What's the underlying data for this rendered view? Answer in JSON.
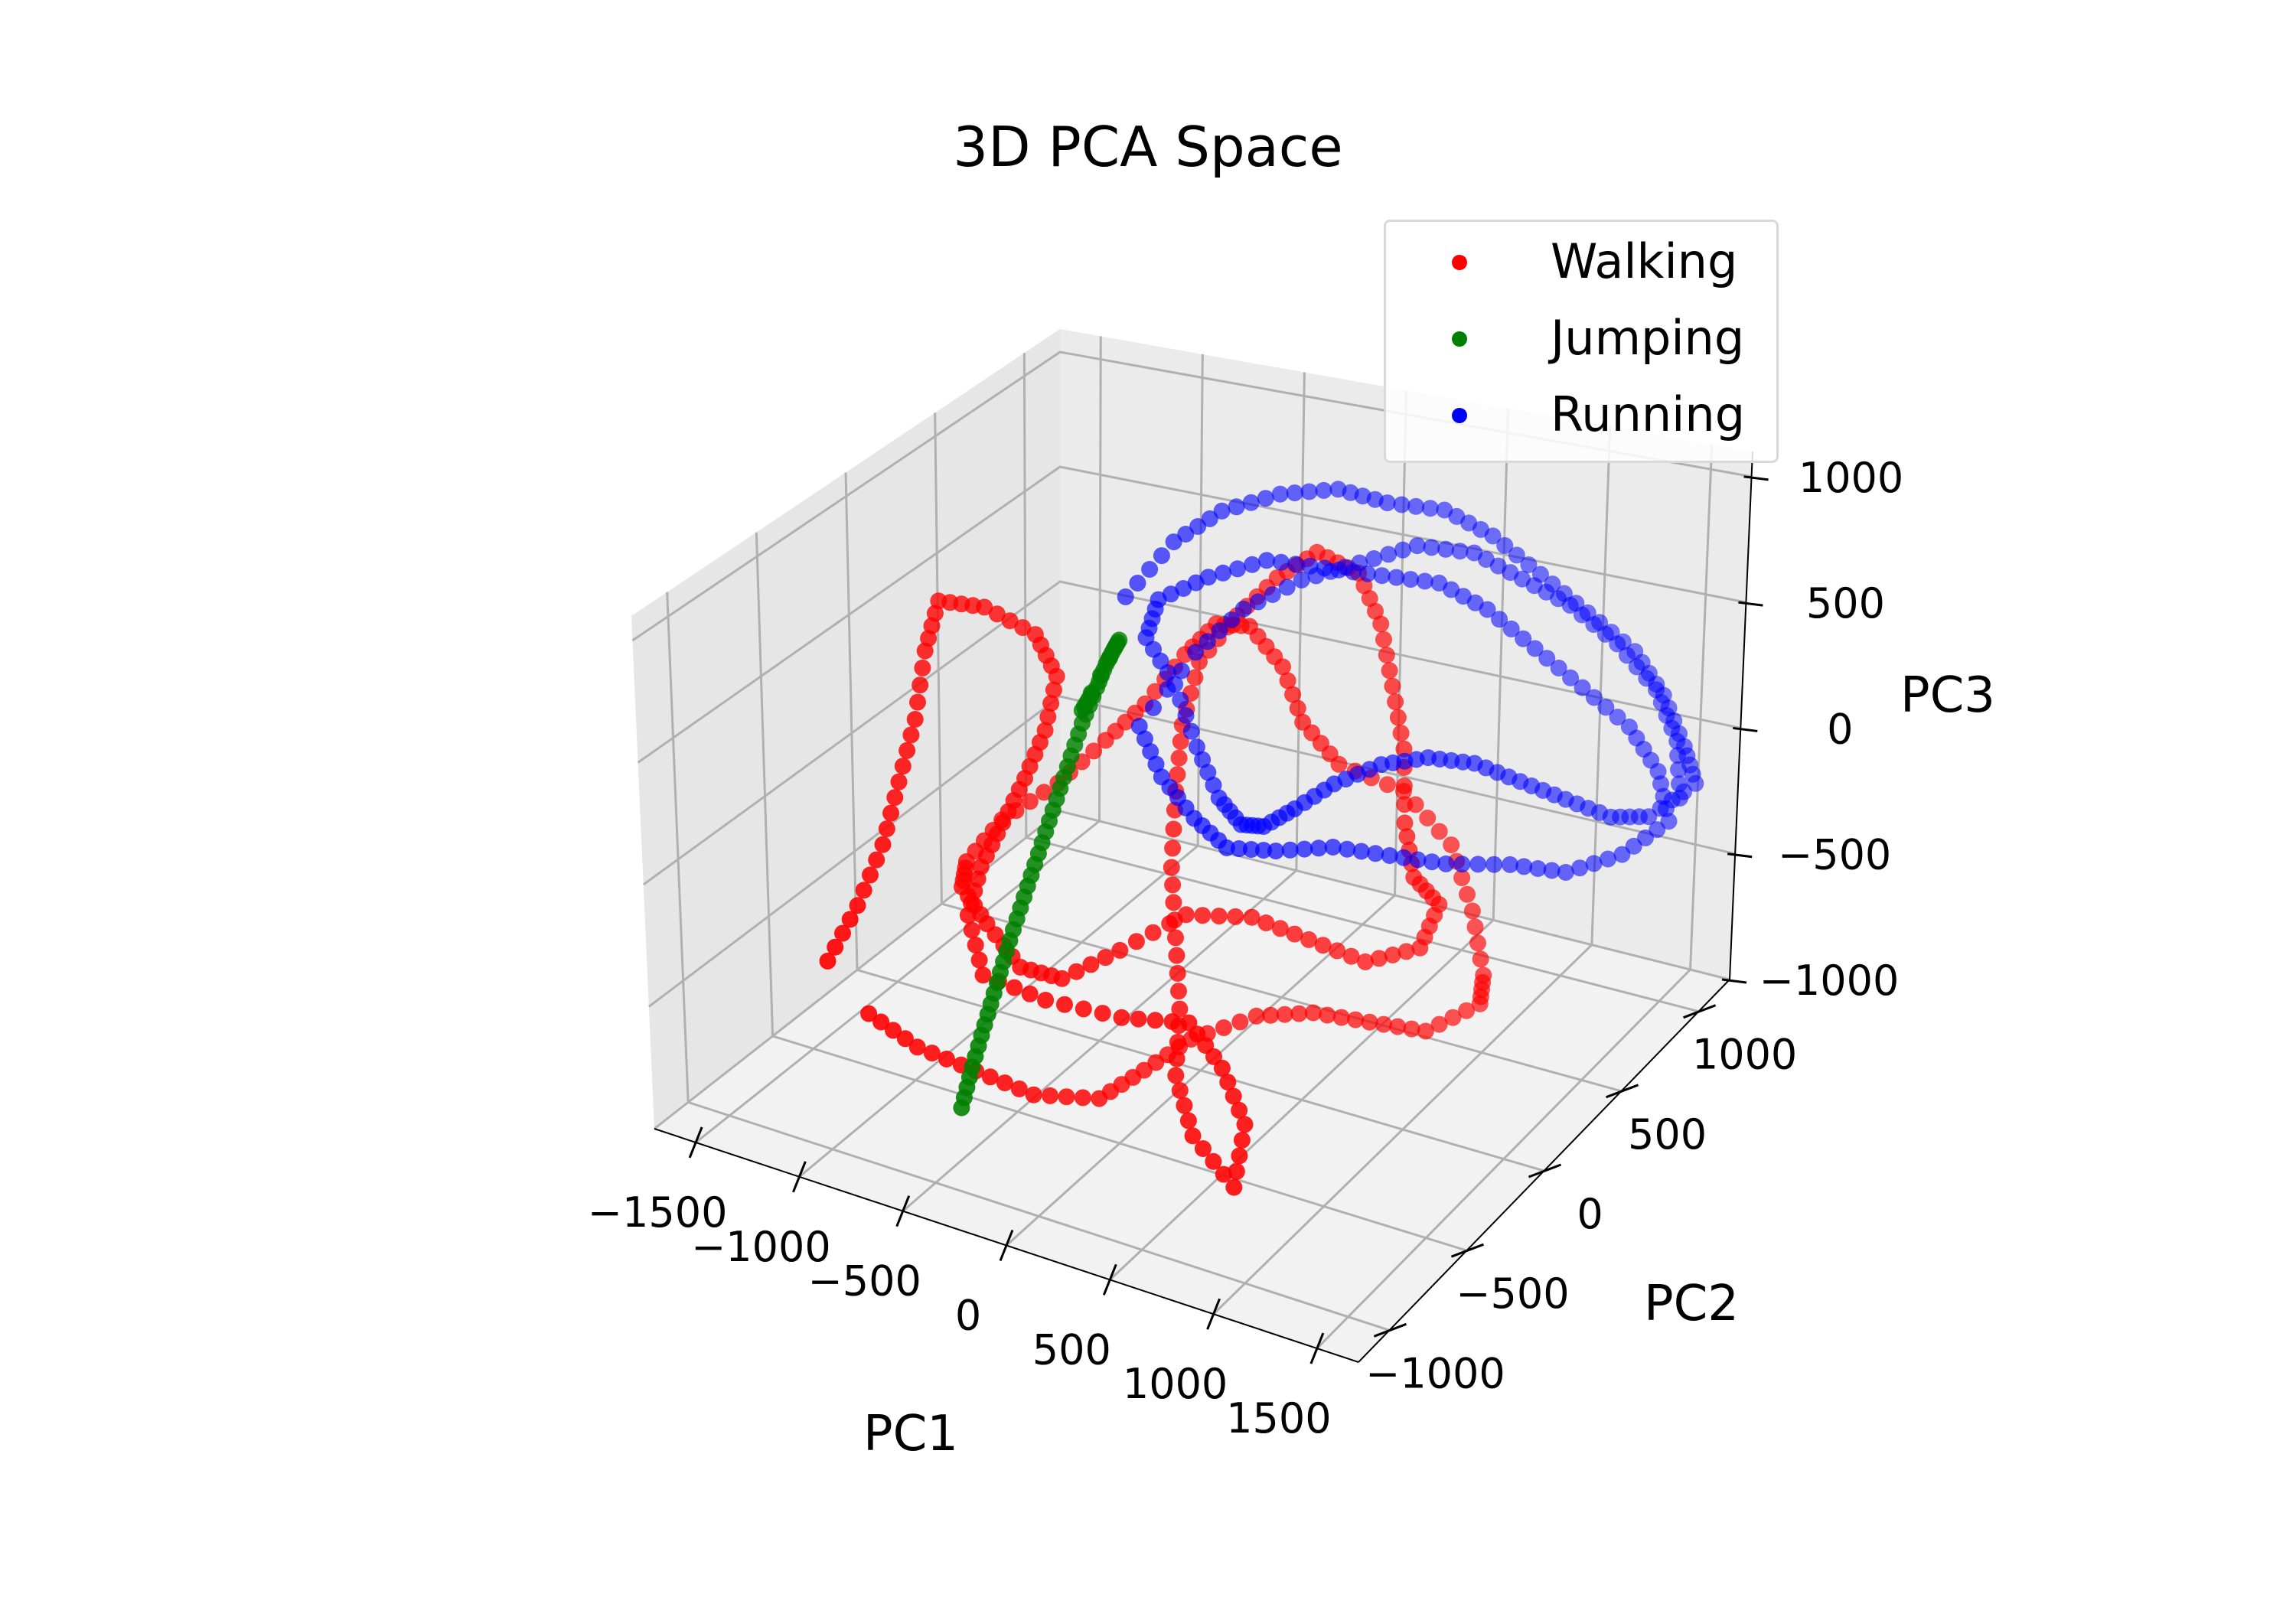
{
  "chart_data": {
    "type": "scatter",
    "projection": "3d",
    "title": "3D PCA Space",
    "xlabel": "PC1",
    "ylabel": "PC2",
    "zlabel": "PC3",
    "xlim": [
      -1700,
      1700
    ],
    "ylim": [
      -1200,
      1200
    ],
    "zlim": [
      -1000,
      1100
    ],
    "xticks": [
      -1500,
      -1000,
      -500,
      0,
      500,
      1000,
      1500
    ],
    "xtick_labels": [
      "−1500",
      "−1000",
      "−500",
      "0",
      "500",
      "1000",
      "1500"
    ],
    "yticks": [
      -1000,
      -500,
      0,
      500,
      1000
    ],
    "ytick_labels": [
      "−1000",
      "−500",
      "0",
      "500",
      "1000"
    ],
    "zticks": [
      -1000,
      -500,
      0,
      500,
      1000
    ],
    "ztick_labels": [
      "−1000",
      "−500",
      "0",
      "500",
      "1000"
    ],
    "grid": true,
    "legend_position": "top-right",
    "series": [
      {
        "name": "Walking",
        "color": "#ff0000",
        "points": [
          [
            -1000,
            -1000,
            -250
          ],
          [
            -950,
            -880,
            -80
          ],
          [
            -930,
            -750,
            100
          ],
          [
            -930,
            -650,
            300
          ],
          [
            -930,
            -550,
            500
          ],
          [
            -960,
            -450,
            720
          ],
          [
            -1000,
            -320,
            850
          ],
          [
            -800,
            -300,
            850
          ],
          [
            -600,
            -250,
            750
          ],
          [
            -500,
            -250,
            600
          ],
          [
            -500,
            -320,
            420
          ],
          [
            -550,
            -380,
            250
          ],
          [
            -600,
            -450,
            100
          ],
          [
            -650,
            -520,
            -50
          ],
          [
            -650,
            -600,
            -200
          ],
          [
            -500,
            -700,
            -350
          ],
          [
            -200,
            -700,
            -380
          ],
          [
            150,
            -680,
            -380
          ],
          [
            450,
            -650,
            -350
          ],
          [
            650,
            -700,
            -450
          ],
          [
            800,
            -750,
            -600
          ],
          [
            850,
            -880,
            -750
          ],
          [
            550,
            -750,
            -700
          ],
          [
            350,
            -600,
            -600
          ],
          [
            250,
            -450,
            -450
          ],
          [
            150,
            -350,
            -250
          ],
          [
            50,
            -250,
            -50
          ],
          [
            -50,
            -100,
            150
          ],
          [
            -100,
            0,
            350
          ],
          [
            -100,
            100,
            550
          ],
          [
            0,
            200,
            700
          ],
          [
            150,
            250,
            850
          ],
          [
            300,
            300,
            950
          ],
          [
            500,
            300,
            900
          ],
          [
            650,
            250,
            750
          ],
          [
            750,
            200,
            550
          ],
          [
            850,
            150,
            350
          ],
          [
            900,
            100,
            100
          ],
          [
            950,
            100,
            -100
          ],
          [
            1000,
            200,
            -250
          ],
          [
            950,
            150,
            -400
          ],
          [
            800,
            0,
            -400
          ],
          [
            600,
            -100,
            -300
          ],
          [
            400,
            -200,
            -200
          ],
          [
            200,
            -350,
            -150
          ],
          [
            0,
            -500,
            -250
          ],
          [
            -200,
            -600,
            -350
          ],
          [
            -400,
            -600,
            -350
          ],
          [
            -600,
            -550,
            -250
          ],
          [
            -800,
            -450,
            -200
          ],
          [
            -900,
            -300,
            -200
          ],
          [
            -850,
            -150,
            -100
          ],
          [
            -700,
            0,
            0
          ],
          [
            -550,
            100,
            150
          ],
          [
            -400,
            150,
            300
          ],
          [
            -250,
            200,
            500
          ],
          [
            -100,
            200,
            650
          ],
          [
            100,
            150,
            700
          ],
          [
            300,
            100,
            600
          ],
          [
            400,
            100,
            400
          ],
          [
            500,
            200,
            200
          ],
          [
            700,
            350,
            50
          ],
          [
            900,
            400,
            -150
          ],
          [
            1050,
            350,
            -350
          ],
          [
            1150,
            300,
            -550
          ],
          [
            1100,
            350,
            -700
          ],
          [
            950,
            200,
            -750
          ],
          [
            750,
            100,
            -700
          ],
          [
            550,
            0,
            -650
          ],
          [
            350,
            -100,
            -650
          ],
          [
            150,
            -250,
            -700
          ],
          [
            0,
            -350,
            -800
          ],
          [
            -100,
            -500,
            -850
          ],
          [
            -300,
            -650,
            -800
          ],
          [
            -500,
            -750,
            -700
          ],
          [
            -700,
            -850,
            -600
          ],
          [
            -850,
            -950,
            -450
          ]
        ]
      },
      {
        "name": "Jumping",
        "color": "#008000",
        "points": [
          [
            -450,
            -900,
            -750
          ],
          [
            -420,
            -870,
            -600
          ],
          [
            -390,
            -830,
            -450
          ],
          [
            -360,
            -790,
            -300
          ],
          [
            -330,
            -750,
            -150
          ],
          [
            -300,
            -700,
            0
          ],
          [
            -270,
            -650,
            150
          ],
          [
            -240,
            -600,
            300
          ],
          [
            -210,
            -550,
            450
          ],
          [
            -180,
            -500,
            600
          ],
          [
            -150,
            -450,
            720
          ],
          [
            -130,
            -420,
            800
          ],
          [
            -110,
            -400,
            850
          ],
          [
            -100,
            -380,
            880
          ],
          [
            -180,
            -500,
            650
          ],
          [
            -160,
            -470,
            700
          ]
        ]
      },
      {
        "name": "Running",
        "color": "#0000ff",
        "points": [
          [
            -700,
            400,
            550
          ],
          [
            -550,
            500,
            750
          ],
          [
            -400,
            600,
            850
          ],
          [
            -200,
            700,
            900
          ],
          [
            0,
            800,
            900
          ],
          [
            200,
            850,
            850
          ],
          [
            400,
            950,
            800
          ],
          [
            600,
            1000,
            700
          ],
          [
            800,
            1050,
            550
          ],
          [
            1000,
            1100,
            400
          ],
          [
            1200,
            1150,
            250
          ],
          [
            1350,
            1150,
            100
          ],
          [
            1500,
            1100,
            -50
          ],
          [
            1600,
            1050,
            -150
          ],
          [
            1450,
            950,
            -250
          ],
          [
            1300,
            900,
            -250
          ],
          [
            1150,
            800,
            -150
          ],
          [
            1000,
            700,
            -50
          ],
          [
            850,
            600,
            50
          ],
          [
            700,
            500,
            100
          ],
          [
            550,
            400,
            100
          ],
          [
            400,
            300,
            50
          ],
          [
            250,
            250,
            -50
          ],
          [
            100,
            250,
            -150
          ],
          [
            -50,
            300,
            -200
          ],
          [
            -200,
            350,
            -150
          ],
          [
            -350,
            400,
            0
          ],
          [
            -500,
            450,
            200
          ],
          [
            -600,
            400,
            400
          ],
          [
            -500,
            350,
            600
          ],
          [
            -300,
            400,
            700
          ],
          [
            -100,
            500,
            750
          ],
          [
            100,
            600,
            700
          ],
          [
            300,
            700,
            650
          ],
          [
            500,
            800,
            600
          ],
          [
            700,
            850,
            500
          ],
          [
            900,
            900,
            350
          ],
          [
            1100,
            950,
            200
          ],
          [
            1300,
            1000,
            50
          ],
          [
            1450,
            1000,
            -100
          ],
          [
            1550,
            950,
            -250
          ],
          [
            1400,
            850,
            -350
          ],
          [
            1200,
            750,
            -400
          ],
          [
            1000,
            650,
            -350
          ],
          [
            800,
            500,
            -300
          ],
          [
            600,
            400,
            -250
          ],
          [
            400,
            300,
            -200
          ],
          [
            200,
            200,
            -200
          ],
          [
            0,
            150,
            -200
          ],
          [
            -200,
            200,
            -150
          ],
          [
            -400,
            250,
            -50
          ],
          [
            -550,
            300,
            100
          ],
          [
            -400,
            450,
            350
          ],
          [
            -250,
            550,
            500
          ],
          [
            -50,
            650,
            600
          ],
          [
            150,
            750,
            650
          ],
          [
            350,
            850,
            700
          ],
          [
            550,
            950,
            650
          ],
          [
            750,
            1000,
            550
          ],
          [
            950,
            1050,
            450
          ],
          [
            1150,
            1100,
            300
          ],
          [
            1350,
            1100,
            150
          ],
          [
            1500,
            1050,
            0
          ],
          [
            1600,
            950,
            -150
          ]
        ]
      }
    ]
  }
}
